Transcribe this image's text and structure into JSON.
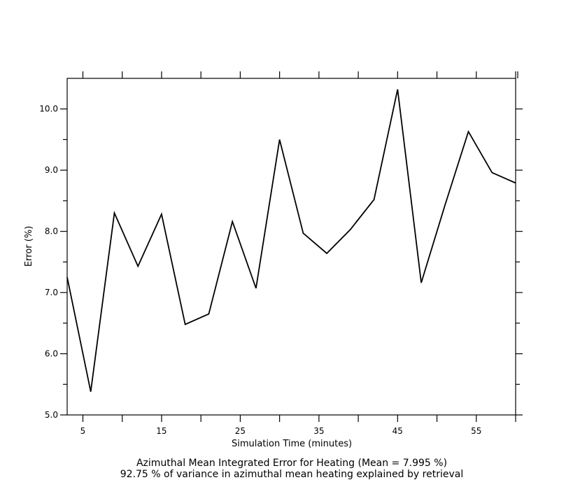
{
  "chart_data": {
    "type": "line",
    "title": "Azimuthal Mean Integrated Error for Heating (Mean = 7.995 %)",
    "subtitle": "92.75 % of variance in azimuthal mean heating explained by retrieval",
    "xlabel": "Simulation Time (minutes)",
    "ylabel": "Error (%)",
    "xlim": [
      3,
      60
    ],
    "ylim": [
      5.0,
      10.5
    ],
    "x_ticks": [
      5,
      15,
      25,
      35,
      45,
      55
    ],
    "x_tick_labels": [
      "5",
      "15",
      "25",
      "35",
      "45",
      "55"
    ],
    "x_minor_ticks": [
      5,
      10,
      15,
      20,
      25,
      30,
      35,
      40,
      45,
      50,
      55,
      60
    ],
    "y_ticks": [
      5.0,
      6.0,
      7.0,
      8.0,
      9.0,
      10.0
    ],
    "y_tick_labels": [
      "5.0",
      "6.0",
      "7.0",
      "8.0",
      "9.0",
      "10.0"
    ],
    "y_minor_ticks": [
      5.5,
      6.5,
      7.5,
      8.5,
      9.5
    ],
    "grid": false,
    "line_color": "#000000",
    "series": [
      {
        "x": [
          3,
          6,
          9,
          12,
          15,
          18,
          21,
          24,
          27,
          30,
          33,
          36,
          39,
          42,
          45,
          48,
          51,
          54,
          57,
          60
        ],
        "values": [
          7.25,
          5.38,
          8.3,
          7.43,
          8.28,
          6.48,
          6.65,
          8.16,
          7.07,
          9.5,
          7.97,
          7.64,
          8.03,
          8.52,
          10.32,
          7.16,
          8.42,
          9.63,
          8.96,
          8.79
        ]
      }
    ]
  }
}
